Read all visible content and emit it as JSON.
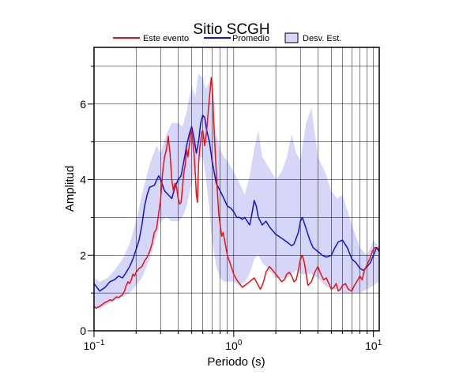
{
  "chart_data": {
    "type": "line",
    "title": "Sitio SCGH",
    "xlabel": "Periodo (s)",
    "ylabel": "Amplitud",
    "xscale": "log",
    "xlim": [
      0.1,
      11
    ],
    "ylim": [
      0,
      7.5
    ],
    "x_ticks": [
      {
        "base": "10",
        "exp": "−1",
        "value": 0.1
      },
      {
        "base": "10",
        "exp": "0",
        "value": 1
      },
      {
        "base": "10",
        "exp": "1",
        "value": 10
      }
    ],
    "y_ticks": [
      {
        "label": "0",
        "value": 0
      },
      {
        "label": "2",
        "value": 2
      },
      {
        "label": "4",
        "value": 4
      },
      {
        "label": "6",
        "value": 6
      }
    ],
    "grid": true,
    "legend_position": "top",
    "legend": [
      {
        "label": "Este evento",
        "kind": "line",
        "color": "#ee1111"
      },
      {
        "label": "Promedio",
        "kind": "line",
        "color": "#1111dd"
      },
      {
        "label": "Desv. Est.",
        "kind": "box",
        "color": "#d6d6f8"
      }
    ],
    "band": {
      "name": "Desv. Est.",
      "color": "#d6d6f8",
      "x": [
        0.1,
        0.11,
        0.125,
        0.14,
        0.16,
        0.18,
        0.2,
        0.22,
        0.25,
        0.28,
        0.3,
        0.33,
        0.36,
        0.4,
        0.43,
        0.46,
        0.5,
        0.53,
        0.56,
        0.6,
        0.63,
        0.67,
        0.7,
        0.75,
        0.8,
        0.85,
        0.9,
        1.0,
        1.1,
        1.2,
        1.3,
        1.4,
        1.5,
        1.6,
        1.8,
        2.0,
        2.2,
        2.4,
        2.6,
        2.8,
        3.0,
        3.3,
        3.6,
        4.0,
        4.5,
        5.0,
        5.5,
        6.0,
        7.0,
        8.0,
        9.0,
        10.0,
        11.0
      ],
      "upper": [
        1.4,
        1.3,
        1.4,
        1.6,
        1.9,
        2.3,
        2.9,
        3.6,
        4.4,
        4.9,
        4.7,
        5.2,
        5.5,
        5.5,
        5.4,
        5.8,
        6.5,
        6.2,
        6.8,
        6.7,
        6.4,
        6.6,
        5.8,
        5.2,
        4.8,
        4.6,
        4.5,
        4.2,
        3.9,
        3.6,
        4.1,
        4.8,
        5.3,
        4.6,
        4.3,
        4.0,
        4.2,
        4.6,
        5.2,
        4.7,
        4.5,
        5.5,
        5.9,
        4.6,
        4.2,
        3.7,
        3.5,
        3.6,
        2.8,
        2.2,
        2.0,
        2.4,
        2.2
      ],
      "lower": [
        0.6,
        0.6,
        0.7,
        0.8,
        0.9,
        1.0,
        1.2,
        1.4,
        1.9,
        2.5,
        2.9,
        3.0,
        2.9,
        2.9,
        3.0,
        3.3,
        3.9,
        4.2,
        4.6,
        4.6,
        4.1,
        3.2,
        2.4,
        1.7,
        1.4,
        1.3,
        1.3,
        1.3,
        1.2,
        1.3,
        1.5,
        1.9,
        2.0,
        1.8,
        1.6,
        1.4,
        1.4,
        1.4,
        1.5,
        1.6,
        1.5,
        1.5,
        1.5,
        1.4,
        1.2,
        1.1,
        1.1,
        1.0,
        1.0,
        1.0,
        1.1,
        1.2,
        1.3
      ]
    },
    "series": [
      {
        "name": "Promedio",
        "color": "#1111dd",
        "x": [
          0.1,
          0.11,
          0.12,
          0.13,
          0.14,
          0.15,
          0.16,
          0.17,
          0.18,
          0.19,
          0.2,
          0.21,
          0.22,
          0.23,
          0.24,
          0.25,
          0.27,
          0.29,
          0.3,
          0.32,
          0.34,
          0.36,
          0.38,
          0.4,
          0.42,
          0.44,
          0.46,
          0.48,
          0.5,
          0.52,
          0.54,
          0.56,
          0.58,
          0.6,
          0.62,
          0.64,
          0.67,
          0.7,
          0.75,
          0.8,
          0.85,
          0.9,
          0.95,
          1.0,
          1.05,
          1.1,
          1.15,
          1.2,
          1.3,
          1.35,
          1.4,
          1.45,
          1.5,
          1.6,
          1.7,
          1.8,
          1.9,
          2.0,
          2.1,
          2.2,
          2.4,
          2.6,
          2.7,
          2.8,
          2.9,
          3.0,
          3.1,
          3.3,
          3.5,
          3.7,
          4.0,
          4.3,
          4.6,
          5.0,
          5.3,
          5.6,
          6.0,
          6.5,
          7.0,
          7.5,
          8.0,
          8.5,
          9.0,
          9.5,
          10.0,
          10.5,
          11.0
        ],
        "y": [
          1.25,
          1.05,
          1.15,
          1.3,
          1.35,
          1.45,
          1.4,
          1.55,
          1.7,
          1.9,
          2.15,
          2.4,
          2.8,
          3.3,
          3.6,
          3.8,
          3.85,
          4.1,
          4.0,
          3.7,
          3.6,
          3.5,
          3.8,
          4.0,
          4.1,
          4.5,
          4.9,
          5.2,
          5.4,
          5.1,
          4.7,
          5.0,
          5.5,
          5.7,
          5.65,
          5.3,
          5.0,
          4.5,
          3.9,
          3.7,
          3.5,
          3.3,
          3.25,
          3.15,
          3.0,
          3.0,
          2.95,
          3.0,
          2.8,
          3.1,
          3.45,
          3.3,
          3.0,
          2.8,
          2.9,
          2.75,
          2.65,
          2.55,
          2.5,
          2.45,
          2.35,
          2.25,
          2.3,
          2.45,
          2.6,
          2.9,
          3.0,
          2.7,
          2.4,
          2.2,
          2.1,
          2.0,
          1.95,
          2.0,
          2.2,
          2.35,
          2.4,
          2.2,
          1.9,
          1.8,
          1.65,
          1.6,
          1.7,
          1.8,
          2.0,
          2.2,
          2.1
        ]
      },
      {
        "name": "Este evento",
        "color": "#ee1111",
        "x": [
          0.1,
          0.103,
          0.106,
          0.11,
          0.115,
          0.12,
          0.125,
          0.13,
          0.135,
          0.14,
          0.145,
          0.15,
          0.155,
          0.16,
          0.165,
          0.17,
          0.175,
          0.18,
          0.185,
          0.19,
          0.195,
          0.2,
          0.21,
          0.22,
          0.23,
          0.24,
          0.25,
          0.26,
          0.27,
          0.28,
          0.29,
          0.3,
          0.31,
          0.32,
          0.33,
          0.34,
          0.345,
          0.35,
          0.36,
          0.37,
          0.38,
          0.39,
          0.4,
          0.41,
          0.42,
          0.43,
          0.44,
          0.45,
          0.46,
          0.47,
          0.48,
          0.49,
          0.5,
          0.51,
          0.52,
          0.53,
          0.54,
          0.55,
          0.555,
          0.56,
          0.57,
          0.58,
          0.59,
          0.6,
          0.62,
          0.64,
          0.66,
          0.68,
          0.69,
          0.7,
          0.71,
          0.72,
          0.74,
          0.76,
          0.78,
          0.8,
          0.82,
          0.84,
          0.86,
          0.88,
          0.9,
          0.95,
          1.0,
          1.05,
          1.1,
          1.15,
          1.2,
          1.3,
          1.4,
          1.5,
          1.55,
          1.6,
          1.65,
          1.7,
          1.8,
          1.9,
          2.0,
          2.1,
          2.2,
          2.3,
          2.4,
          2.5,
          2.6,
          2.7,
          2.8,
          2.9,
          3.0,
          3.1,
          3.2,
          3.4,
          3.6,
          3.8,
          4.0,
          4.2,
          4.4,
          4.6,
          4.8,
          5.0,
          5.2,
          5.4,
          5.6,
          5.8,
          6.0,
          6.3,
          6.6,
          7.0,
          7.3,
          7.6,
          8.0,
          8.3,
          8.6,
          9.0,
          9.4,
          9.8,
          10.2,
          10.6,
          11.0
        ],
        "y": [
          0.65,
          0.6,
          0.62,
          0.65,
          0.7,
          0.75,
          0.78,
          0.82,
          0.8,
          0.85,
          0.9,
          0.88,
          0.92,
          0.95,
          1.05,
          1.2,
          1.3,
          1.25,
          1.35,
          1.5,
          1.45,
          1.55,
          1.65,
          1.7,
          1.85,
          1.95,
          2.1,
          2.3,
          2.6,
          2.7,
          3.1,
          3.5,
          4.2,
          4.6,
          4.8,
          5.15,
          4.9,
          4.7,
          4.0,
          3.7,
          3.9,
          3.8,
          3.5,
          3.35,
          3.4,
          3.8,
          4.2,
          4.4,
          4.8,
          4.6,
          4.9,
          5.2,
          5.3,
          5.0,
          4.7,
          4.2,
          3.6,
          3.4,
          3.9,
          4.4,
          4.8,
          5.0,
          5.25,
          5.3,
          4.9,
          5.3,
          5.9,
          6.4,
          6.7,
          6.5,
          6.1,
          5.5,
          4.6,
          3.8,
          3.1,
          2.8,
          2.5,
          2.6,
          2.4,
          2.2,
          2.0,
          1.75,
          1.5,
          1.35,
          1.25,
          1.15,
          1.2,
          1.3,
          1.4,
          1.2,
          1.1,
          1.2,
          1.35,
          1.55,
          1.7,
          1.6,
          1.5,
          1.4,
          1.3,
          1.35,
          1.5,
          1.55,
          1.45,
          1.3,
          1.35,
          1.6,
          1.9,
          2.0,
          1.8,
          1.2,
          1.3,
          1.55,
          1.7,
          1.5,
          1.35,
          1.4,
          1.25,
          1.1,
          1.15,
          1.25,
          1.05,
          1.1,
          1.2,
          1.25,
          1.1,
          1.05,
          1.2,
          1.3,
          1.45,
          1.35,
          1.6,
          1.75,
          1.9,
          2.1,
          2.2,
          2.2,
          2.15
        ]
      }
    ]
  }
}
